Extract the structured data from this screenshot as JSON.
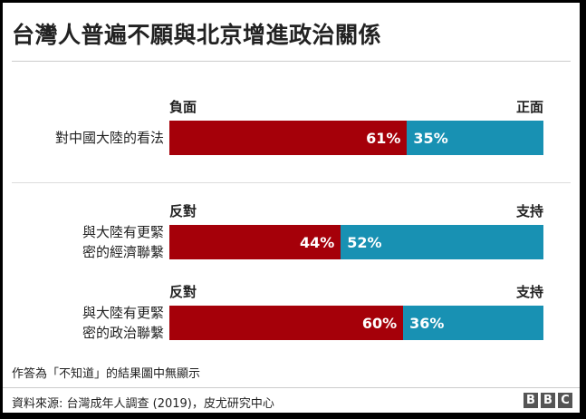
{
  "title": "台灣人普遍不願與北京增進政治關係",
  "chart_data": {
    "type": "bar",
    "stacked": true,
    "orientation": "horizontal",
    "rows": [
      {
        "label_lines": [
          "對中國大陸的看法"
        ],
        "left_end": "負面",
        "right_end": "正面",
        "negative": 61,
        "positive": 35,
        "negative_label": "61%",
        "positive_label": "35%"
      },
      {
        "label_lines": [
          "與大陸有更緊",
          "密的經濟聯繫"
        ],
        "left_end": "反對",
        "right_end": "支持",
        "negative": 44,
        "positive": 52,
        "negative_label": "44%",
        "positive_label": "52%"
      },
      {
        "label_lines": [
          "與大陸有更緊",
          "密的政治聯繫"
        ],
        "left_end": "反對",
        "right_end": "支持",
        "negative": 60,
        "positive": 36,
        "negative_label": "60%",
        "positive_label": "36%"
      }
    ],
    "colors": {
      "negative": "#a50009",
      "positive": "#1891b3"
    }
  },
  "note": "作答為「不知道」的結果圖中無顯示",
  "source": "資料來源: 台灣成年人調查 (2019)，皮尤研究中心",
  "brand": [
    "B",
    "B",
    "C"
  ]
}
